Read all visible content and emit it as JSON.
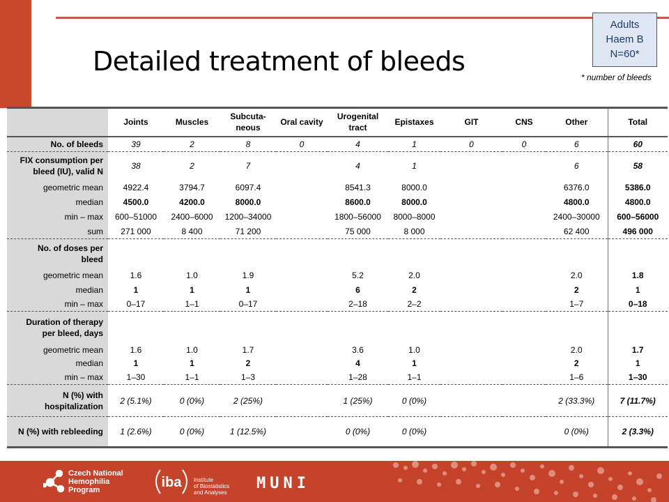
{
  "slide": {
    "title": "Detailed treatment of bleeds",
    "badge": [
      "Adults",
      "Haem B",
      "N=60*"
    ],
    "footnote": "* number of bleeds"
  },
  "table": {
    "columns": [
      "Joints",
      "Muscles",
      "Subcuta-\nneous",
      "Oral cavity",
      "Urogenital\ntract",
      "Epistaxes",
      "GIT",
      "CNS",
      "Other",
      "Total"
    ],
    "rows": [
      {
        "label": "No. of bleeds",
        "label_bold": true,
        "style": "ital",
        "sep": true,
        "h": 22,
        "cells": [
          "39",
          "2",
          "8",
          "0",
          "4",
          "1",
          "0",
          "0",
          "6",
          "60"
        ]
      },
      {
        "label": "FIX consumption per\nbleed (IU), valid N",
        "label_bold": true,
        "style": "ital",
        "sep": true,
        "h": 41,
        "cells": [
          "38",
          "2",
          "7",
          "",
          "4",
          "1",
          "",
          "",
          "6",
          "58"
        ]
      },
      {
        "label": "geometric mean",
        "style": "",
        "h": 21,
        "cells": [
          "4922.4",
          "3794.7",
          "6097.4",
          "",
          "8541.3",
          "8000.0",
          "",
          "",
          "6376.0",
          "5386.0"
        ]
      },
      {
        "label": "median",
        "style": "bold",
        "h": 21,
        "cells": [
          "4500.0",
          "4200.0",
          "8000.0",
          "",
          "8600.0",
          "8000.0",
          "",
          "",
          "4800.0",
          "4800.0"
        ]
      },
      {
        "label": "min – max",
        "style": "",
        "h": 21,
        "cells": [
          "600–51000",
          "2400–6000",
          "1200–34000",
          "",
          "1800–56000",
          "8000–8000",
          "",
          "",
          "2400–30000",
          "600–56000"
        ]
      },
      {
        "label": "sum",
        "style": "",
        "h": 21,
        "cells": [
          "271 000",
          "8 400",
          "71 200",
          "",
          "75 000",
          "8 000",
          "",
          "",
          "62 400",
          "496 000"
        ]
      },
      {
        "label": "No. of doses per\nbleed",
        "label_bold": true,
        "style": "",
        "sep": true,
        "h": 42,
        "header_only": true,
        "cells": [
          "",
          "",
          "",
          "",
          "",
          "",
          "",
          "",
          "",
          ""
        ]
      },
      {
        "label": "geometric mean",
        "style": "",
        "h": 21,
        "cells": [
          "1.6",
          "1.0",
          "1.9",
          "",
          "5.2",
          "2.0",
          "",
          "",
          "2.0",
          "1.8"
        ]
      },
      {
        "label": "median",
        "style": "bold",
        "h": 20,
        "cells": [
          "1",
          "1",
          "1",
          "",
          "6",
          "2",
          "",
          "",
          "2",
          "1"
        ]
      },
      {
        "label": "min – max",
        "style": "",
        "h": 21,
        "cells": [
          "0–17",
          "1–1",
          "0–17",
          "",
          "2–18",
          "2–2",
          "",
          "",
          "1–7",
          "0–18"
        ]
      },
      {
        "label": "Duration of therapy\nper bleed, days",
        "label_bold": true,
        "style": "",
        "sep": true,
        "h": 46,
        "header_only": true,
        "cells": [
          "",
          "",
          "",
          "",
          "",
          "",
          "",
          "",
          "",
          ""
        ]
      },
      {
        "label": "geometric mean",
        "style": "",
        "h": 18,
        "cells": [
          "1.6",
          "1.0",
          "1.7",
          "",
          "3.6",
          "1.0",
          "",
          "",
          "2.0",
          "1.7"
        ]
      },
      {
        "label": "median",
        "style": "bold",
        "h": 20,
        "cells": [
          "1",
          "1",
          "2",
          "",
          "4",
          "1",
          "",
          "",
          "2",
          "1"
        ]
      },
      {
        "label": "min – max",
        "style": "",
        "h": 21,
        "cells": [
          "1–30",
          "1–1",
          "1–3",
          "",
          "1–28",
          "1–1",
          "",
          "",
          "1–6",
          "1–30"
        ]
      },
      {
        "label": "N (%) with\nhospitalization",
        "label_bold": true,
        "style": "ital",
        "sep": true,
        "h": 46,
        "cells": [
          "2 (5.1%)",
          "0 (0%)",
          "2 (25%)",
          "",
          "1 (25%)",
          "0 (0%)",
          "",
          "",
          "2 (33.3%)",
          "7 (11.7%)"
        ]
      },
      {
        "label": "N (%) with rebleeding",
        "label_bold": true,
        "style": "ital",
        "sep": true,
        "last": true,
        "h": 44,
        "cells": [
          "1 (2.6%)",
          "0 (0%)",
          "1 (12.5%)",
          "",
          "0 (0%)",
          "0 (0%)",
          "",
          "",
          "0 (0%)",
          "2 (3.3%)"
        ]
      }
    ]
  },
  "footer": {
    "cnhp": [
      "Czech National",
      "Hemophilia",
      "Program"
    ],
    "iba_mark": "iba",
    "iba": [
      "Institute",
      "of Biostatistics",
      "and Analyses"
    ],
    "muni": "MUNI"
  }
}
